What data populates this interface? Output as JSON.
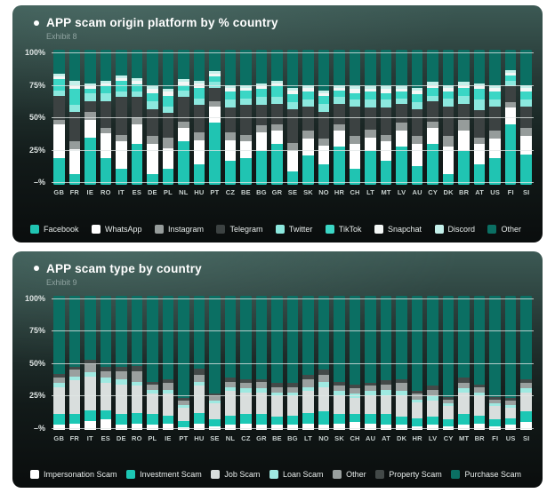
{
  "page_background": "#ffffff",
  "chart_data": [
    {
      "type": "bar",
      "stacked": true,
      "title": "APP scam origin platform by % country",
      "subtitle": "Exhibit 8",
      "ylim": [
        0,
        100
      ],
      "y_ticks": [
        "100%",
        "75%",
        "50%",
        "25%",
        "–%"
      ],
      "grid": true,
      "legend_position": "bottom",
      "categories": [
        "GB",
        "FR",
        "IE",
        "RO",
        "IT",
        "ES",
        "DE",
        "PL",
        "NL",
        "HU",
        "PT",
        "CZ",
        "BE",
        "BG",
        "GR",
        "SE",
        "SK",
        "NO",
        "HR",
        "CH",
        "LT",
        "MT",
        "LV",
        "AU",
        "CY",
        "DK",
        "BR",
        "AT",
        "US",
        "FI",
        "SI"
      ],
      "series": [
        {
          "name": "Facebook",
          "color": "#20c4b2",
          "values": [
            20,
            8,
            35,
            20,
            12,
            30,
            8,
            12,
            32,
            15,
            46,
            18,
            20,
            25,
            30,
            10,
            22,
            15,
            28,
            12,
            25,
            18,
            28,
            14,
            30,
            8,
            25,
            15,
            20,
            45,
            22
          ]
        },
        {
          "name": "WhatsApp",
          "color": "#ffffff",
          "values": [
            25,
            18,
            13,
            18,
            20,
            15,
            22,
            15,
            10,
            18,
            12,
            15,
            12,
            14,
            10,
            15,
            12,
            14,
            12,
            18,
            10,
            14,
            12,
            16,
            12,
            20,
            15,
            15,
            14,
            12,
            14
          ]
        },
        {
          "name": "Instagram",
          "color": "#969c9b",
          "values": [
            3,
            6,
            6,
            4,
            5,
            5,
            6,
            8,
            5,
            6,
            4,
            6,
            5,
            5,
            5,
            6,
            6,
            5,
            5,
            6,
            6,
            5,
            6,
            6,
            5,
            8,
            8,
            5,
            6,
            4,
            6
          ]
        },
        {
          "name": "Telegram",
          "color": "#3c4242",
          "values": [
            18,
            22,
            8,
            20,
            28,
            15,
            20,
            18,
            18,
            20,
            10,
            18,
            22,
            15,
            15,
            25,
            18,
            20,
            15,
            22,
            16,
            20,
            14,
            20,
            15,
            22,
            12,
            20,
            18,
            12,
            16
          ]
        },
        {
          "name": "Twitter",
          "color": "#8ce8de",
          "values": [
            4,
            5,
            6,
            6,
            4,
            4,
            6,
            5,
            5,
            5,
            4,
            6,
            5,
            6,
            5,
            5,
            5,
            6,
            5,
            5,
            6,
            6,
            4,
            5,
            4,
            6,
            6,
            8,
            5,
            4,
            5
          ]
        },
        {
          "name": "TikTok",
          "color": "#3bd6c5",
          "values": [
            8,
            12,
            3,
            5,
            8,
            5,
            6,
            8,
            4,
            8,
            4,
            6,
            6,
            6,
            8,
            6,
            6,
            6,
            5,
            5,
            6,
            5,
            5,
            6,
            6,
            5,
            6,
            8,
            6,
            4,
            6
          ]
        },
        {
          "name": "Snapchat",
          "color": "#f4f7f6",
          "values": [
            2,
            3,
            2,
            2,
            2,
            3,
            3,
            3,
            2,
            3,
            2,
            3,
            2,
            2,
            2,
            3,
            3,
            2,
            2,
            3,
            2,
            3,
            2,
            3,
            2,
            3,
            2,
            2,
            3,
            2,
            3
          ]
        },
        {
          "name": "Discord",
          "color": "#c4f0ea",
          "values": [
            2,
            3,
            2,
            2,
            2,
            2,
            2,
            2,
            2,
            2,
            2,
            2,
            2,
            2,
            2,
            2,
            2,
            2,
            2,
            2,
            2,
            2,
            2,
            2,
            2,
            2,
            2,
            2,
            2,
            2,
            2
          ]
        },
        {
          "name": "Other",
          "color": "#0b6f63",
          "values": [
            18,
            23,
            25,
            23,
            19,
            21,
            27,
            29,
            22,
            23,
            16,
            26,
            26,
            25,
            23,
            28,
            26,
            30,
            26,
            27,
            27,
            27,
            27,
            28,
            24,
            26,
            24,
            25,
            26,
            15,
            26
          ]
        }
      ]
    },
    {
      "type": "bar",
      "stacked": true,
      "title": "APP scam type by country",
      "subtitle": "Exhibit 9",
      "ylim": [
        0,
        100
      ],
      "y_ticks": [
        "100%",
        "75%",
        "50%",
        "25%",
        "–%"
      ],
      "grid": true,
      "legend_position": "bottom",
      "categories": [
        "GB",
        "FR",
        "IT",
        "ES",
        "DE",
        "RO",
        "PL",
        "IE",
        "PT",
        "HU",
        "SE",
        "NL",
        "CZ",
        "GR",
        "BE",
        "BG",
        "LT",
        "NO",
        "SK",
        "CH",
        "AU",
        "AT",
        "DK",
        "HR",
        "LV",
        "CY",
        "MT",
        "BR",
        "FI",
        "US",
        "SI"
      ],
      "series": [
        {
          "name": "Impersonation Scam",
          "color": "#ffffff",
          "values": [
            4,
            5,
            7,
            8,
            4,
            5,
            4,
            5,
            2,
            5,
            3,
            4,
            5,
            4,
            4,
            4,
            5,
            4,
            5,
            6,
            5,
            4,
            4,
            3,
            4,
            3,
            4,
            5,
            3,
            4,
            6
          ]
        },
        {
          "name": "Investment Scam",
          "color": "#1cc7b4",
          "values": [
            8,
            7,
            8,
            7,
            8,
            8,
            8,
            6,
            5,
            8,
            5,
            7,
            7,
            8,
            6,
            7,
            8,
            10,
            7,
            6,
            7,
            8,
            6,
            6,
            6,
            5,
            8,
            6,
            5,
            5,
            8
          ]
        },
        {
          "name": "Job Scam",
          "color": "#d9dedd",
          "values": [
            20,
            25,
            25,
            20,
            22,
            20,
            15,
            16,
            10,
            20,
            12,
            18,
            16,
            16,
            15,
            14,
            16,
            18,
            14,
            12,
            14,
            14,
            16,
            12,
            12,
            10,
            16,
            14,
            10,
            8,
            14
          ]
        },
        {
          "name": "Loan Scam",
          "color": "#9fe9e1",
          "values": [
            3,
            3,
            3,
            4,
            4,
            3,
            3,
            3,
            2,
            3,
            2,
            3,
            3,
            3,
            3,
            3,
            3,
            4,
            3,
            3,
            3,
            4,
            3,
            2,
            3,
            2,
            3,
            3,
            2,
            2,
            3
          ]
        },
        {
          "name": "Other",
          "color": "#9aa09f",
          "values": [
            4,
            5,
            6,
            5,
            6,
            8,
            4,
            5,
            3,
            5,
            3,
            4,
            4,
            5,
            4,
            4,
            6,
            5,
            4,
            4,
            4,
            4,
            6,
            4,
            5,
            3,
            4,
            4,
            3,
            3,
            4
          ]
        },
        {
          "name": "Property Scam",
          "color": "#434948",
          "values": [
            3,
            2,
            3,
            3,
            3,
            4,
            2,
            3,
            2,
            5,
            2,
            3,
            3,
            2,
            3,
            3,
            3,
            4,
            3,
            3,
            2,
            3,
            3,
            2,
            3,
            2,
            4,
            2,
            2,
            2,
            3
          ]
        },
        {
          "name": "Purchase Scam",
          "color": "#0b6f63",
          "values": [
            58,
            53,
            48,
            53,
            53,
            52,
            64,
            62,
            76,
            54,
            73,
            61,
            62,
            62,
            65,
            65,
            59,
            55,
            64,
            66,
            65,
            63,
            62,
            71,
            67,
            75,
            61,
            66,
            75,
            76,
            62
          ]
        }
      ]
    }
  ]
}
